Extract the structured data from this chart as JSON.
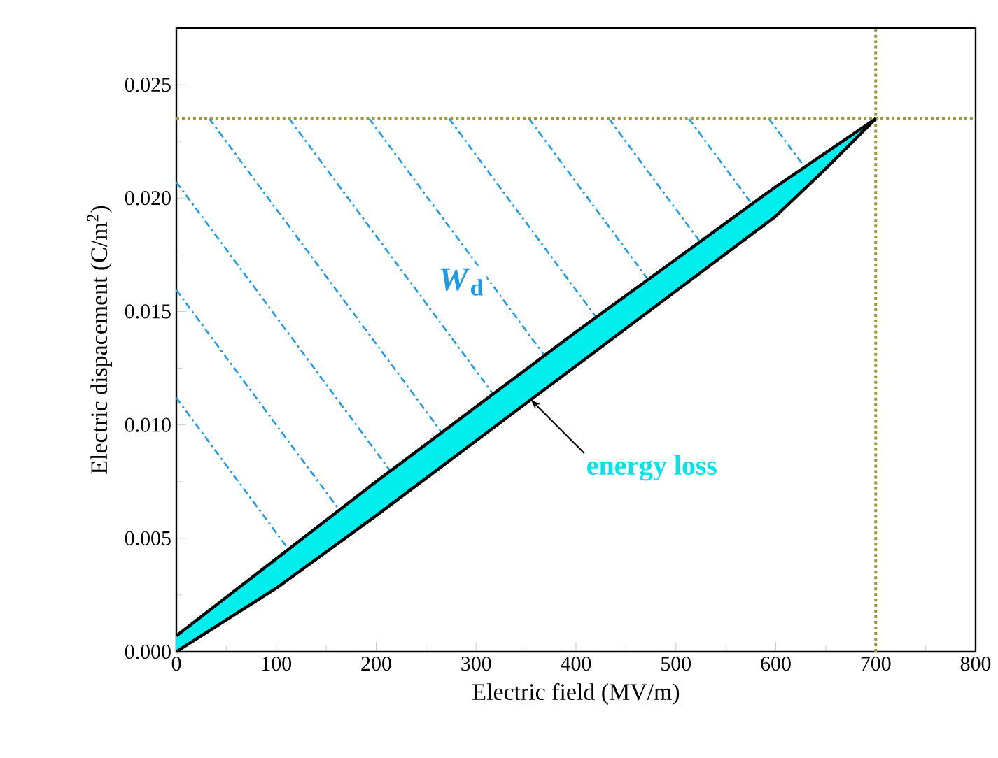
{
  "chart_data": {
    "type": "line",
    "xlabel": "Electric field (MV/m)",
    "ylabel": "Electric dispacement (C/m$^{2}$)",
    "xlim": [
      0,
      800
    ],
    "xticks": [
      0,
      100,
      200,
      300,
      400,
      500,
      600,
      700,
      800
    ],
    "ylim": [
      0,
      0.0275
    ],
    "yticks": [
      {
        "value": 0,
        "label": "0.000"
      },
      {
        "value": 0.005,
        "label": "0.005"
      },
      {
        "value": 0.01,
        "label": "0.010"
      },
      {
        "value": 0.015,
        "label": "0.015"
      },
      {
        "value": 0.02,
        "label": "0.020"
      },
      {
        "value": 0.025,
        "label": "0.025"
      }
    ],
    "series": [
      {
        "color": "#000000",
        "x": [
          0,
          100,
          200,
          300,
          400,
          500,
          600,
          650,
          700
        ],
        "values": [
          0.0007,
          0.0041,
          0.0075,
          0.0108,
          0.0141,
          0.0173,
          0.0205,
          0.022,
          0.0235
        ]
      },
      {
        "color": "#000000",
        "x": [
          0,
          100,
          200,
          300,
          400,
          500,
          600,
          650,
          700
        ],
        "values": [
          0,
          0.0028,
          0.006,
          0.0093,
          0.0126,
          0.0159,
          0.0192,
          0.0213,
          0.0235
        ]
      }
    ],
    "ref_lines": [
      {
        "axis": "x",
        "value": 700,
        "color": "#9a9a3a",
        "line_style": "dotted"
      },
      {
        "axis": "y",
        "value": 0.0235,
        "color": "#9a9a3a",
        "line_style": "dotted"
      }
    ],
    "annotations": [
      "*W*$_{d}$",
      {
        "text": "energy loss",
        "x": 355,
        "y": 0.0111
      }
    ],
    "grid": false,
    "marker": "none",
    "line_style": "solid"
  }
}
